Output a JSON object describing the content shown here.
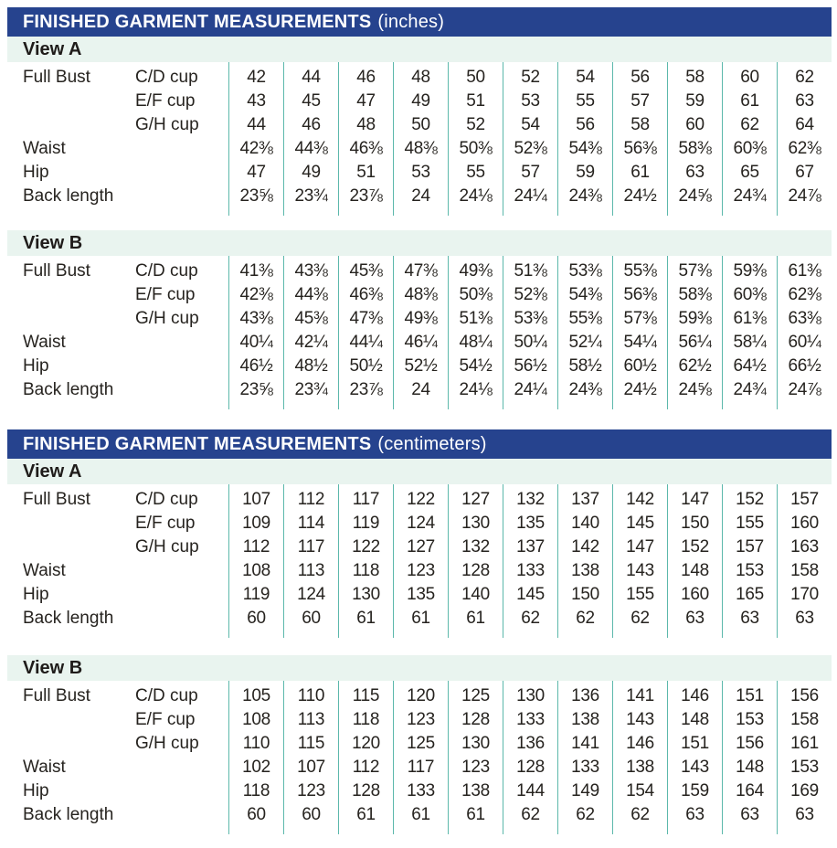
{
  "colors": {
    "header_bg": "#26438e",
    "band_bg": "#e9f4ef",
    "divider_line": "#5cb8ab",
    "header_text": "#ffffff",
    "body_text": "#26231f"
  },
  "sections": [
    {
      "id": "inches",
      "title_bold": "FINISHED GARMENT MEASUREMENTS",
      "title_unit": "(inches)",
      "views": [
        {
          "name": "View A",
          "rows": [
            {
              "label": "Full Bust",
              "sub": "C/D cup",
              "values": [
                "42",
                "44",
                "46",
                "48",
                "50",
                "52",
                "54",
                "56",
                "58",
                "60",
                "62"
              ]
            },
            {
              "label": "",
              "sub": "E/F cup",
              "values": [
                "43",
                "45",
                "47",
                "49",
                "51",
                "53",
                "55",
                "57",
                "59",
                "61",
                "63"
              ]
            },
            {
              "label": "",
              "sub": "G/H cup",
              "values": [
                "44",
                "46",
                "48",
                "50",
                "52",
                "54",
                "56",
                "58",
                "60",
                "62",
                "64"
              ]
            },
            {
              "label": "Waist",
              "sub": "",
              "values": [
                "42⅜",
                "44⅜",
                "46⅜",
                "48⅜",
                "50⅜",
                "52⅜",
                "54⅜",
                "56⅜",
                "58⅜",
                "60⅜",
                "62⅜"
              ]
            },
            {
              "label": "Hip",
              "sub": "",
              "values": [
                "47",
                "49",
                "51",
                "53",
                "55",
                "57",
                "59",
                "61",
                "63",
                "65",
                "67"
              ]
            },
            {
              "label": "Back length",
              "sub": "",
              "values": [
                "23⅝",
                "23¾",
                "23⅞",
                "24",
                "24⅛",
                "24¼",
                "24⅜",
                "24½",
                "24⅝",
                "24¾",
                "24⅞"
              ]
            }
          ]
        },
        {
          "name": "View B",
          "rows": [
            {
              "label": "Full Bust",
              "sub": "C/D cup",
              "values": [
                "41⅜",
                "43⅜",
                "45⅜",
                "47⅜",
                "49⅜",
                "51⅜",
                "53⅜",
                "55⅜",
                "57⅜",
                "59⅜",
                "61⅜"
              ]
            },
            {
              "label": "",
              "sub": "E/F cup",
              "values": [
                "42⅜",
                "44⅜",
                "46⅜",
                "48⅜",
                "50⅜",
                "52⅜",
                "54⅜",
                "56⅜",
                "58⅜",
                "60⅜",
                "62⅜"
              ]
            },
            {
              "label": "",
              "sub": "G/H cup",
              "values": [
                "43⅜",
                "45⅜",
                "47⅜",
                "49⅜",
                "51⅜",
                "53⅜",
                "55⅜",
                "57⅜",
                "59⅜",
                "61⅜",
                "63⅜"
              ]
            },
            {
              "label": "Waist",
              "sub": "",
              "values": [
                "40¼",
                "42¼",
                "44¼",
                "46¼",
                "48¼",
                "50¼",
                "52¼",
                "54¼",
                "56¼",
                "58¼",
                "60¼"
              ]
            },
            {
              "label": "Hip",
              "sub": "",
              "values": [
                "46½",
                "48½",
                "50½",
                "52½",
                "54½",
                "56½",
                "58½",
                "60½",
                "62½",
                "64½",
                "66½"
              ]
            },
            {
              "label": "Back length",
              "sub": "",
              "values": [
                "23⅝",
                "23¾",
                "23⅞",
                "24",
                "24⅛",
                "24¼",
                "24⅜",
                "24½",
                "24⅝",
                "24¾",
                "24⅞"
              ]
            }
          ]
        }
      ]
    },
    {
      "id": "centimeters",
      "title_bold": "FINISHED GARMENT MEASUREMENTS",
      "title_unit": "(centimeters)",
      "views": [
        {
          "name": "View A",
          "rows": [
            {
              "label": "Full Bust",
              "sub": "C/D cup",
              "values": [
                "107",
                "112",
                "117",
                "122",
                "127",
                "132",
                "137",
                "142",
                "147",
                "152",
                "157"
              ]
            },
            {
              "label": "",
              "sub": "E/F cup",
              "values": [
                "109",
                "114",
                "119",
                "124",
                "130",
                "135",
                "140",
                "145",
                "150",
                "155",
                "160"
              ]
            },
            {
              "label": "",
              "sub": "G/H cup",
              "values": [
                "112",
                "117",
                "122",
                "127",
                "132",
                "137",
                "142",
                "147",
                "152",
                "157",
                "163"
              ]
            },
            {
              "label": "Waist",
              "sub": "",
              "values": [
                "108",
                "113",
                "118",
                "123",
                "128",
                "133",
                "138",
                "143",
                "148",
                "153",
                "158"
              ]
            },
            {
              "label": "Hip",
              "sub": "",
              "values": [
                "119",
                "124",
                "130",
                "135",
                "140",
                "145",
                "150",
                "155",
                "160",
                "165",
                "170"
              ]
            },
            {
              "label": "Back length",
              "sub": "",
              "values": [
                "60",
                "60",
                "61",
                "61",
                "61",
                "62",
                "62",
                "62",
                "63",
                "63",
                "63"
              ]
            }
          ]
        },
        {
          "name": "View B",
          "rows": [
            {
              "label": "Full Bust",
              "sub": "C/D cup",
              "values": [
                "105",
                "110",
                "115",
                "120",
                "125",
                "130",
                "136",
                "141",
                "146",
                "151",
                "156"
              ]
            },
            {
              "label": "",
              "sub": "E/F cup",
              "values": [
                "108",
                "113",
                "118",
                "123",
                "128",
                "133",
                "138",
                "143",
                "148",
                "153",
                "158"
              ]
            },
            {
              "label": "",
              "sub": "G/H cup",
              "values": [
                "110",
                "115",
                "120",
                "125",
                "130",
                "136",
                "141",
                "146",
                "151",
                "156",
                "161"
              ]
            },
            {
              "label": "Waist",
              "sub": "",
              "values": [
                "102",
                "107",
                "112",
                "117",
                "123",
                "128",
                "133",
                "138",
                "143",
                "148",
                "153"
              ]
            },
            {
              "label": "Hip",
              "sub": "",
              "values": [
                "118",
                "123",
                "128",
                "133",
                "138",
                "144",
                "149",
                "154",
                "159",
                "164",
                "169"
              ]
            },
            {
              "label": "Back length",
              "sub": "",
              "values": [
                "60",
                "60",
                "61",
                "61",
                "61",
                "62",
                "62",
                "62",
                "63",
                "63",
                "63"
              ]
            }
          ]
        }
      ]
    }
  ]
}
